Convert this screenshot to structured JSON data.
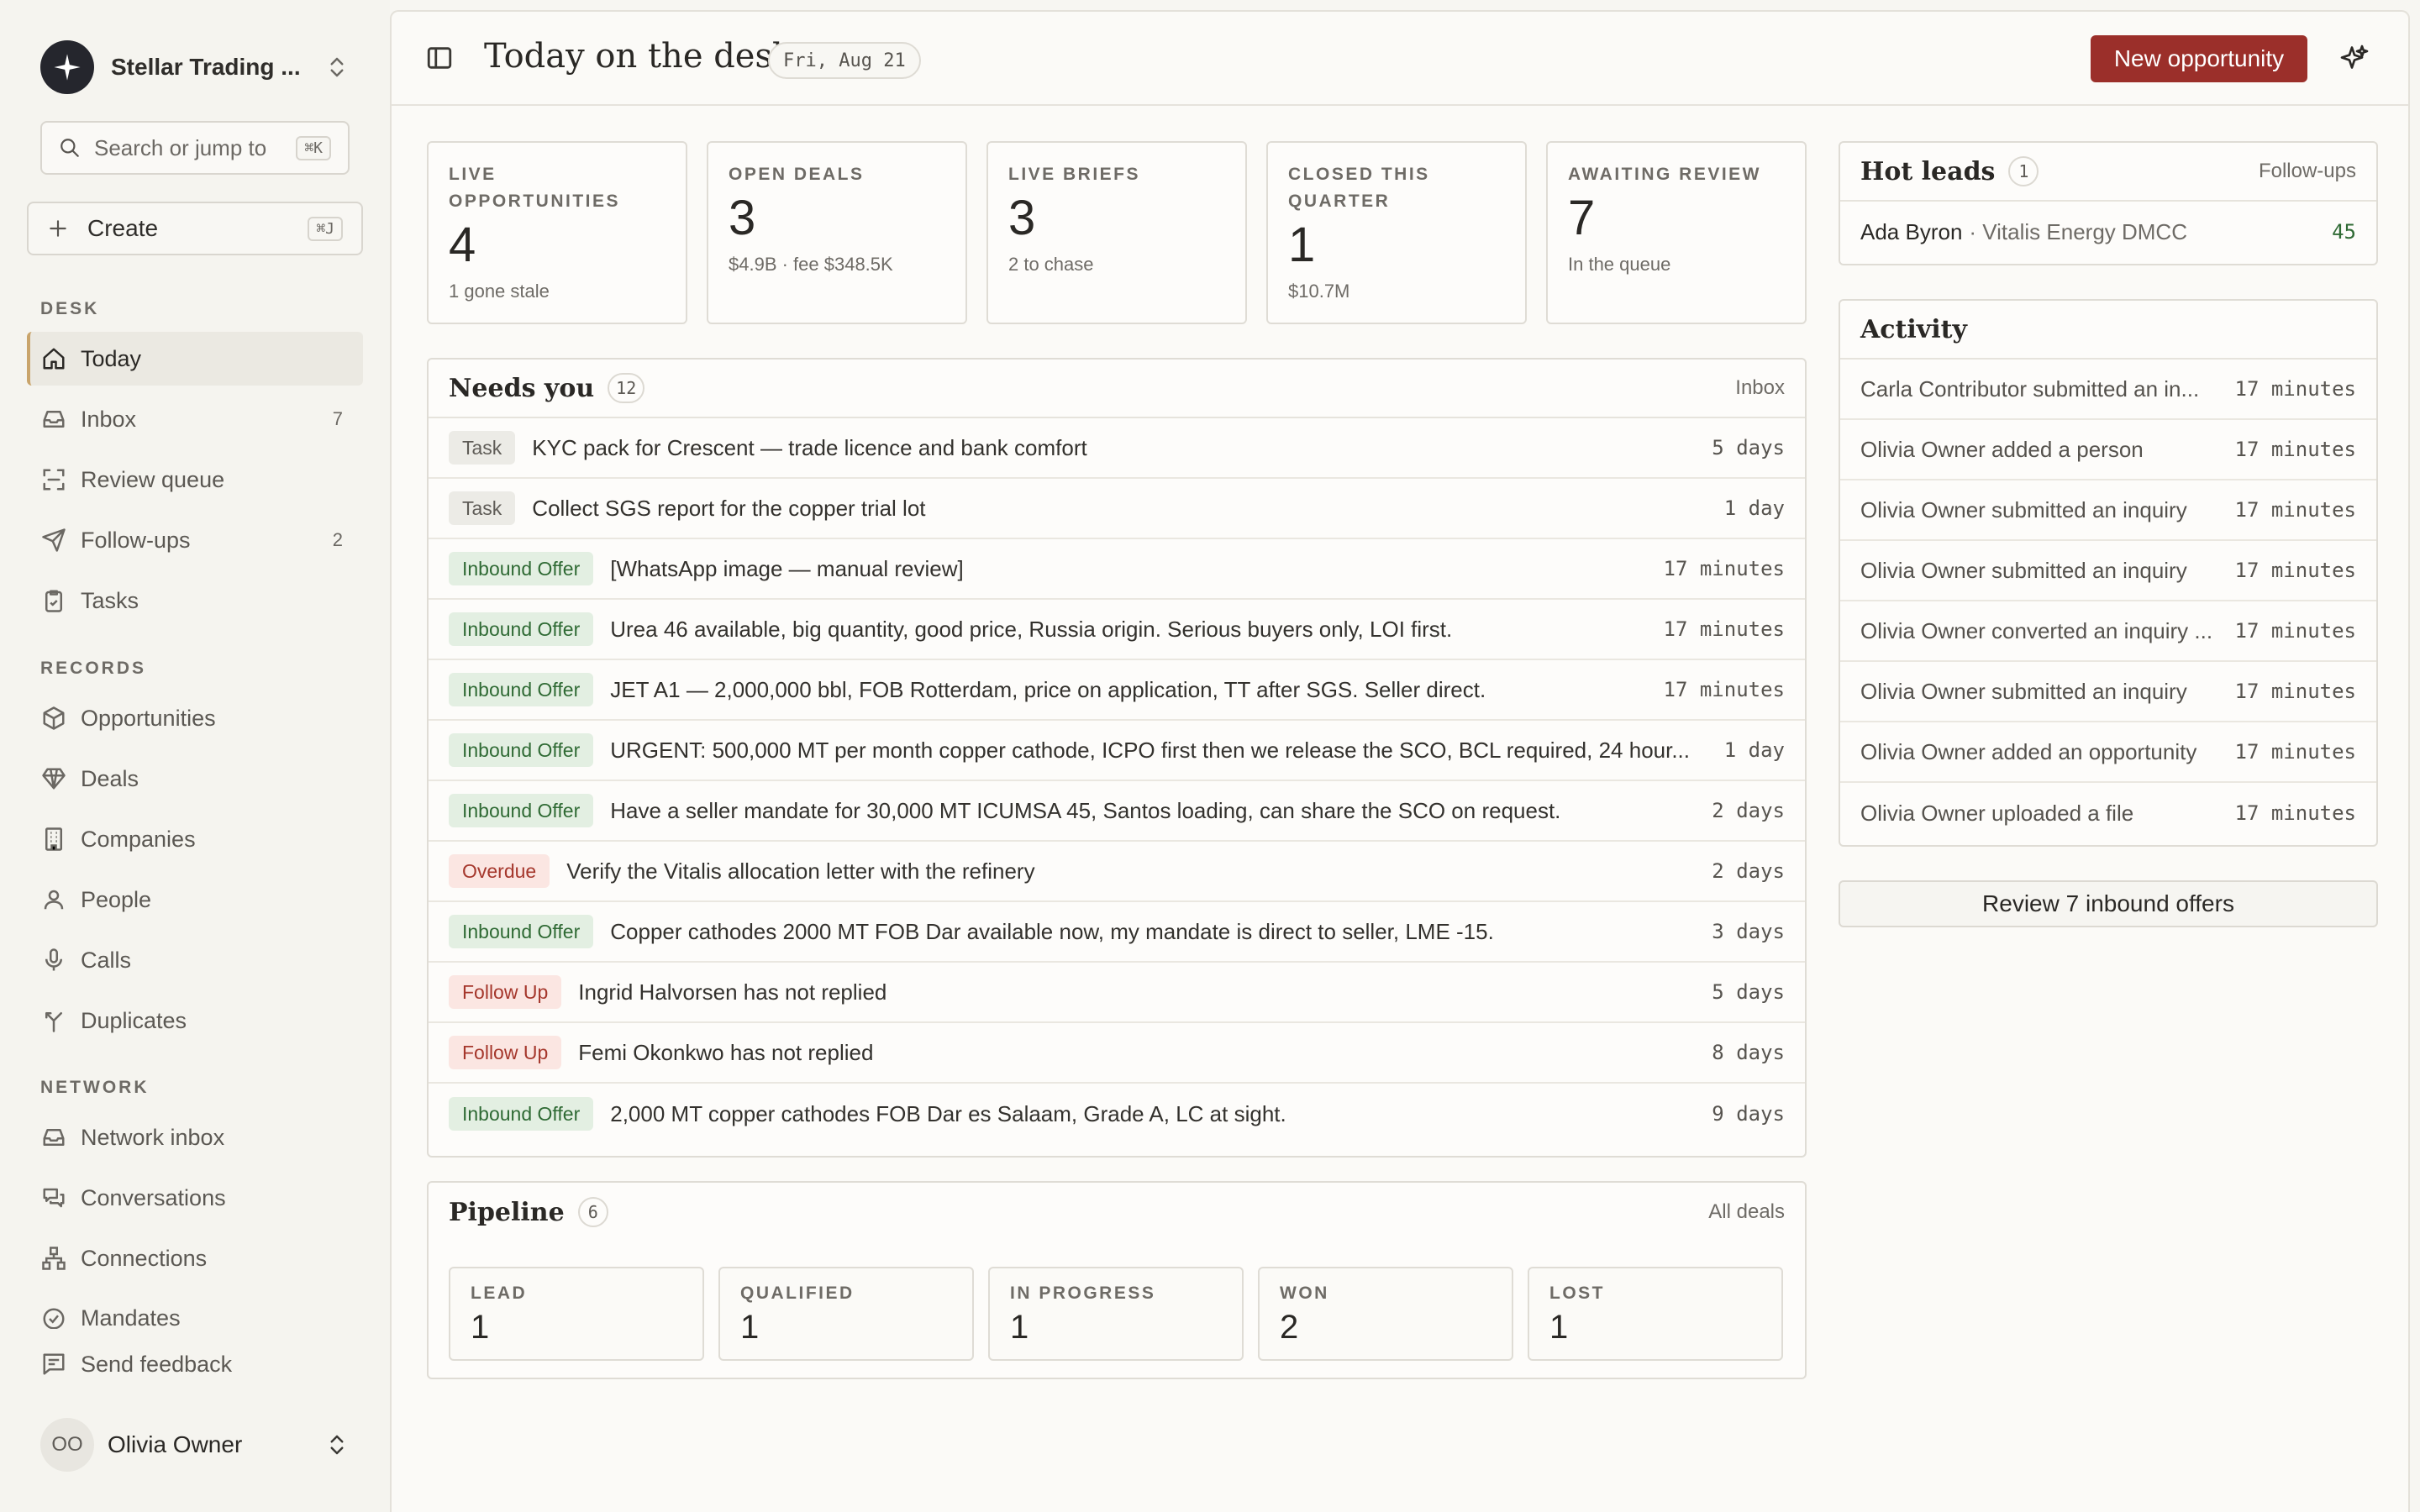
{
  "workspace": {
    "name": "Stellar Trading ..."
  },
  "search": {
    "placeholder": "Search or jump to",
    "shortcut": "⌘K"
  },
  "create": {
    "label": "Create",
    "shortcut": "⌘J"
  },
  "sidebar": {
    "sections": [
      {
        "label": "DESK",
        "items": [
          {
            "label": "Today",
            "icon": "home-icon",
            "active": true
          },
          {
            "label": "Inbox",
            "icon": "inbox-icon",
            "count": "7"
          },
          {
            "label": "Review queue",
            "icon": "scan-icon"
          },
          {
            "label": "Follow-ups",
            "icon": "send-icon",
            "count": "2"
          },
          {
            "label": "Tasks",
            "icon": "clipboard-icon"
          }
        ]
      },
      {
        "label": "RECORDS",
        "items": [
          {
            "label": "Opportunities",
            "icon": "box-icon"
          },
          {
            "label": "Deals",
            "icon": "gem-icon"
          },
          {
            "label": "Companies",
            "icon": "building-icon"
          },
          {
            "label": "People",
            "icon": "person-icon"
          },
          {
            "label": "Calls",
            "icon": "mic-icon"
          },
          {
            "label": "Duplicates",
            "icon": "merge-icon"
          }
        ]
      },
      {
        "label": "NETWORK",
        "items": [
          {
            "label": "Network inbox",
            "icon": "inbox-icon"
          },
          {
            "label": "Conversations",
            "icon": "chat-icon"
          },
          {
            "label": "Connections",
            "icon": "network-icon"
          },
          {
            "label": "Mandates",
            "icon": "check-circle-icon"
          }
        ]
      }
    ],
    "feedback": {
      "label": "Send feedback"
    },
    "user": {
      "name": "Olivia Owner",
      "initials": "OO"
    }
  },
  "header": {
    "title": "Today on the desk",
    "date": "Fri, Aug 21",
    "primary_action": "New opportunity"
  },
  "stats": [
    {
      "label": "LIVE OPPORTUNITIES",
      "value": "4",
      "sub": "1 gone stale"
    },
    {
      "label": "OPEN DEALS",
      "value": "3",
      "sub": "$4.9B · fee $348.5K"
    },
    {
      "label": "LIVE BRIEFS",
      "value": "3",
      "sub": "2 to chase"
    },
    {
      "label": "CLOSED THIS QUARTER",
      "value": "1",
      "sub": "$10.7M"
    },
    {
      "label": "AWAITING REVIEW",
      "value": "7",
      "sub": "In the queue"
    }
  ],
  "needs_you": {
    "title": "Needs you",
    "count": "12",
    "link": "Inbox",
    "rows": [
      {
        "tag": "Task",
        "kind": "task",
        "text": "KYC pack for Crescent — trade licence and bank comfort",
        "time": "5 days"
      },
      {
        "tag": "Task",
        "kind": "task",
        "text": "Collect SGS report for the copper trial lot",
        "time": "1 day"
      },
      {
        "tag": "Inbound Offer",
        "kind": "inbound",
        "text": "[WhatsApp image — manual review]",
        "time": "17 minutes"
      },
      {
        "tag": "Inbound Offer",
        "kind": "inbound",
        "text": "Urea 46 available, big quantity, good price, Russia origin. Serious buyers only, LOI first.",
        "time": "17 minutes"
      },
      {
        "tag": "Inbound Offer",
        "kind": "inbound",
        "text": "JET A1 — 2,000,000 bbl, FOB Rotterdam, price on application, TT after SGS. Seller direct.",
        "time": "17 minutes"
      },
      {
        "tag": "Inbound Offer",
        "kind": "inbound",
        "text": "URGENT: 500,000 MT per month copper cathode, ICPO first then we release the SCO, BCL required, 24 hour...",
        "time": "1 day"
      },
      {
        "tag": "Inbound Offer",
        "kind": "inbound",
        "text": "Have a seller mandate for 30,000 MT ICUMSA 45, Santos loading, can share the SCO on request.",
        "time": "2 days"
      },
      {
        "tag": "Overdue",
        "kind": "overdue",
        "text": "Verify the Vitalis allocation letter with the refinery",
        "time": "2 days"
      },
      {
        "tag": "Inbound Offer",
        "kind": "inbound",
        "text": "Copper cathodes 2000 MT FOB Dar available now, my mandate is direct to seller, LME -15.",
        "time": "3 days"
      },
      {
        "tag": "Follow Up",
        "kind": "follow",
        "text": "Ingrid Halvorsen has not replied",
        "time": "5 days"
      },
      {
        "tag": "Follow Up",
        "kind": "follow",
        "text": "Femi Okonkwo has not replied",
        "time": "8 days"
      },
      {
        "tag": "Inbound Offer",
        "kind": "inbound",
        "text": "2,000 MT copper cathodes FOB Dar es Salaam, Grade A, LC at sight.",
        "time": "9 days"
      }
    ]
  },
  "pipeline": {
    "title": "Pipeline",
    "count": "6",
    "link": "All deals",
    "stages": [
      {
        "label": "LEAD",
        "value": "1"
      },
      {
        "label": "QUALIFIED",
        "value": "1"
      },
      {
        "label": "IN PROGRESS",
        "value": "1"
      },
      {
        "label": "WON",
        "value": "2"
      },
      {
        "label": "LOST",
        "value": "1"
      }
    ]
  },
  "hot_leads": {
    "title": "Hot leads",
    "count": "1",
    "link": "Follow-ups",
    "rows": [
      {
        "name": "Ada Byron",
        "company": "· Vitalis Energy DMCC",
        "score": "45"
      }
    ]
  },
  "activity": {
    "title": "Activity",
    "rows": [
      {
        "text": "Carla Contributor submitted an in...",
        "time": "17 minutes"
      },
      {
        "text": "Olivia Owner added a person",
        "time": "17 minutes"
      },
      {
        "text": "Olivia Owner submitted an inquiry",
        "time": "17 minutes"
      },
      {
        "text": "Olivia Owner submitted an inquiry",
        "time": "17 minutes"
      },
      {
        "text": "Olivia Owner converted an inquiry ...",
        "time": "17 minutes"
      },
      {
        "text": "Olivia Owner submitted an inquiry",
        "time": "17 minutes"
      },
      {
        "text": "Olivia Owner added an opportunity",
        "time": "17 minutes"
      },
      {
        "text": "Olivia Owner uploaded a file",
        "time": "17 minutes"
      }
    ]
  },
  "review_button": "Review 7 inbound offers",
  "colors": {
    "accent": "#9b2f2a",
    "nav_active_bar": "#c9a46b",
    "inbound_tag": "#2f6a34",
    "alert_tag": "#a5372c"
  }
}
